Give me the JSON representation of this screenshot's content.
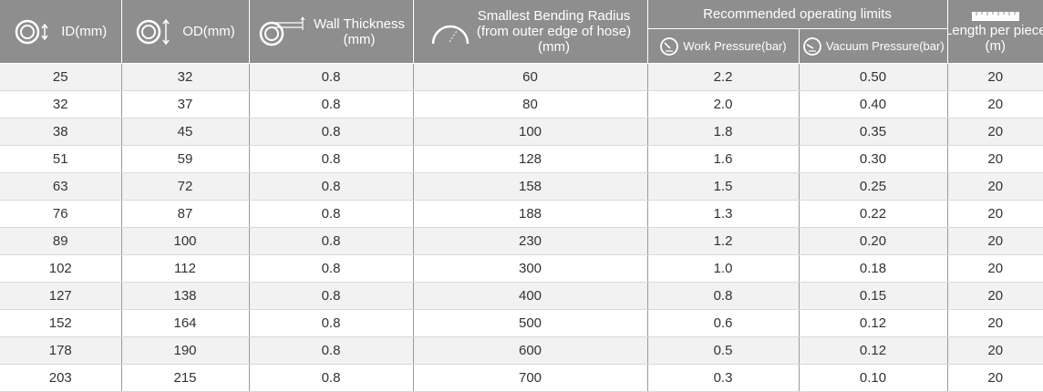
{
  "headers": {
    "id": {
      "label": "ID(mm)",
      "icon": "concentric-rings-id-icon"
    },
    "od": {
      "label": "OD(mm)",
      "icon": "concentric-rings-od-icon"
    },
    "wall": {
      "line1": "Wall Thickness",
      "line2": "(mm)",
      "icon": "ring-wall-thickness-icon"
    },
    "bend": {
      "line1": "Smallest Bending Radius",
      "line2": "(from outer edge of hose)",
      "line3": "(mm)",
      "icon": "bend-arc-icon"
    },
    "limits": {
      "label": "Recommended operating limits"
    },
    "work": {
      "label": "Work Pressure(bar)",
      "icon": "pressure-gauge-icon"
    },
    "vacuum": {
      "label": "Vacuum Pressure(bar)",
      "icon": "vacuum-gauge-icon"
    },
    "length": {
      "line1": "Length per piece",
      "line2": "(m)",
      "icon": "ruler-icon"
    }
  },
  "rows": [
    {
      "id": "25",
      "od": "32",
      "wall": "0.8",
      "bend": "60",
      "work": "2.2",
      "vacuum": "0.50",
      "length": "20"
    },
    {
      "id": "32",
      "od": "37",
      "wall": "0.8",
      "bend": "80",
      "work": "2.0",
      "vacuum": "0.40",
      "length": "20"
    },
    {
      "id": "38",
      "od": "45",
      "wall": "0.8",
      "bend": "100",
      "work": "1.8",
      "vacuum": "0.35",
      "length": "20"
    },
    {
      "id": "51",
      "od": "59",
      "wall": "0.8",
      "bend": "128",
      "work": "1.6",
      "vacuum": "0.30",
      "length": "20"
    },
    {
      "id": "63",
      "od": "72",
      "wall": "0.8",
      "bend": "158",
      "work": "1.5",
      "vacuum": "0.25",
      "length": "20"
    },
    {
      "id": "76",
      "od": "87",
      "wall": "0.8",
      "bend": "188",
      "work": "1.3",
      "vacuum": "0.22",
      "length": "20"
    },
    {
      "id": "89",
      "od": "100",
      "wall": "0.8",
      "bend": "230",
      "work": "1.2",
      "vacuum": "0.20",
      "length": "20"
    },
    {
      "id": "102",
      "od": "112",
      "wall": "0.8",
      "bend": "300",
      "work": "1.0",
      "vacuum": "0.18",
      "length": "20"
    },
    {
      "id": "127",
      "od": "138",
      "wall": "0.8",
      "bend": "400",
      "work": "0.8",
      "vacuum": "0.15",
      "length": "20"
    },
    {
      "id": "152",
      "od": "164",
      "wall": "0.8",
      "bend": "500",
      "work": "0.6",
      "vacuum": "0.12",
      "length": "20"
    },
    {
      "id": "178",
      "od": "190",
      "wall": "0.8",
      "bend": "600",
      "work": "0.5",
      "vacuum": "0.12",
      "length": "20"
    },
    {
      "id": "203",
      "od": "215",
      "wall": "0.8",
      "bend": "700",
      "work": "0.3",
      "vacuum": "0.10",
      "length": "20"
    }
  ],
  "colors": {
    "header_bg": "#8e8e8e",
    "row_alt": "#f2f2f2",
    "text": "#333333"
  }
}
